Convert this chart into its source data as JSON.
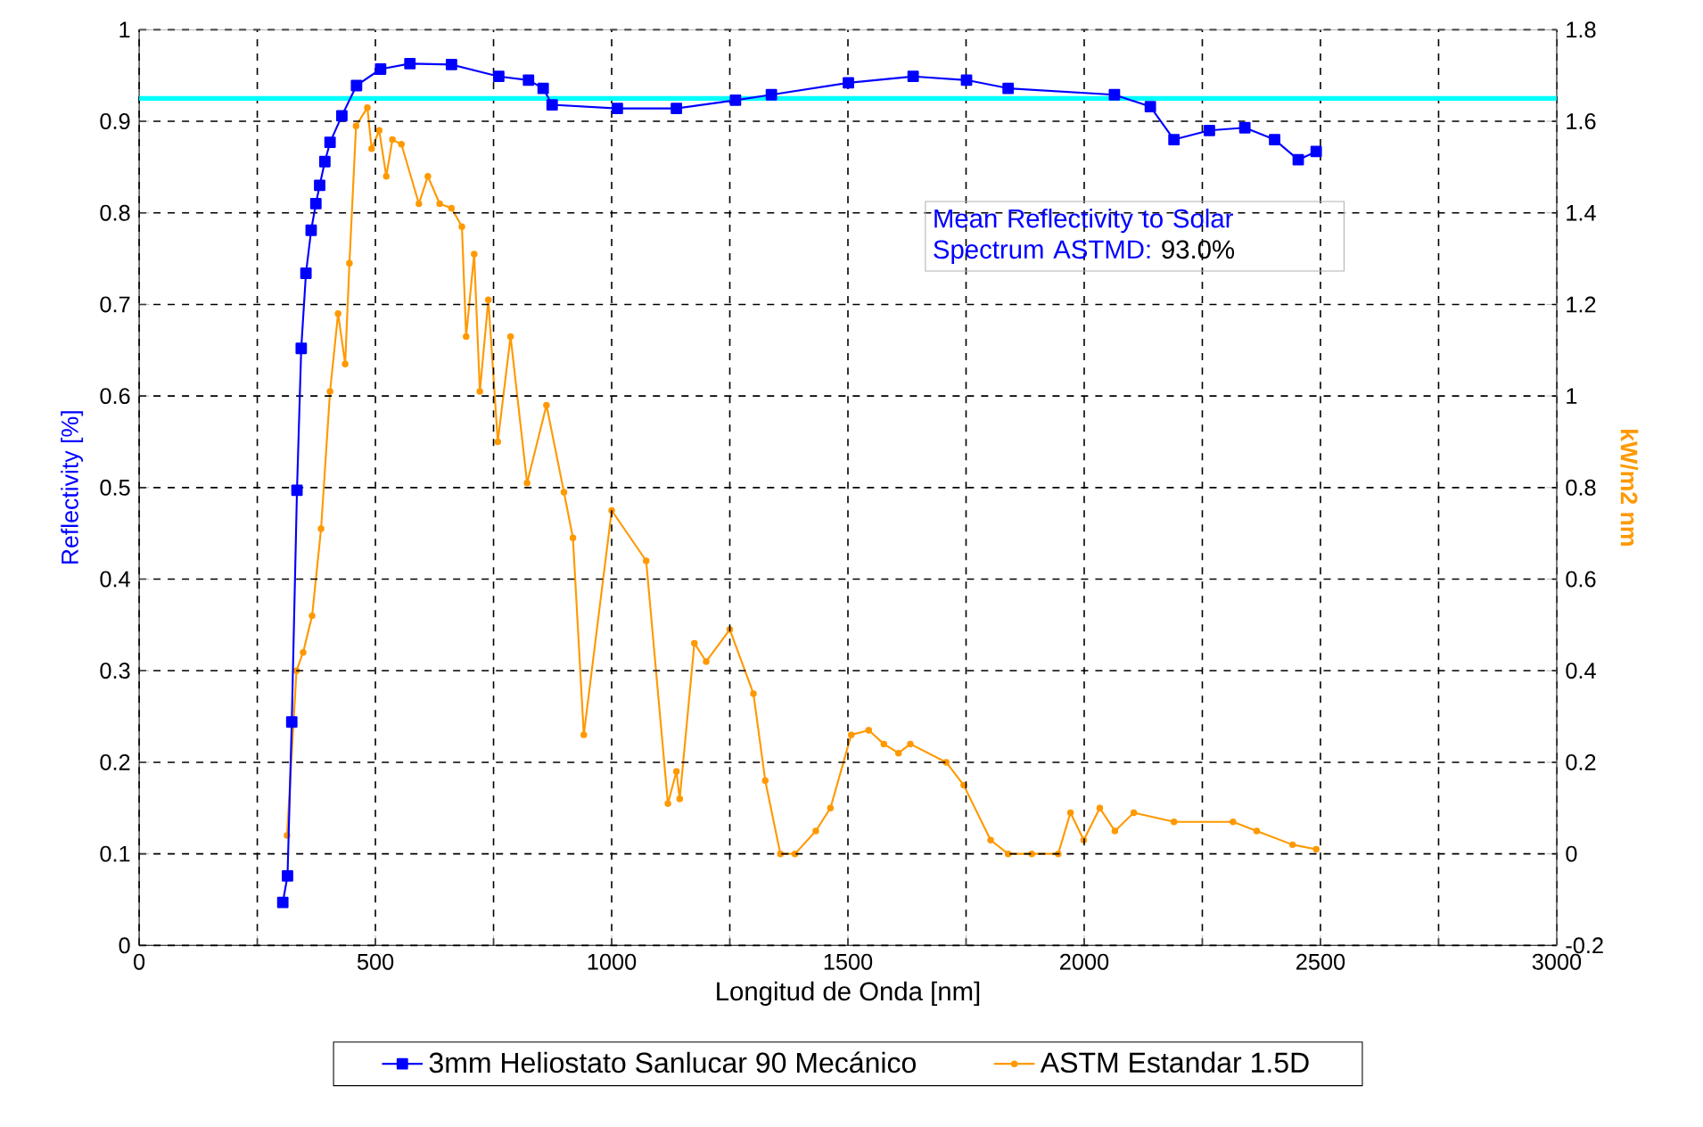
{
  "chart_data": {
    "type": "line",
    "xlabel": "Longitud de Onda [nm]",
    "ylabel": "Reflectivity [%]",
    "y2label": "kW/m2 nm",
    "xlim": [
      0,
      3000
    ],
    "xticks": [
      0,
      {
        "value": 250,
        "label": null
      },
      500,
      {
        "value": 750,
        "label": null
      },
      1000,
      {
        "value": 1250,
        "label": null
      },
      1500,
      {
        "value": 1750,
        "label": null
      },
      2000,
      {
        "value": 2250,
        "label": null
      },
      2500,
      {
        "value": 2750,
        "label": null
      },
      3000
    ],
    "ylim": [
      0,
      1
    ],
    "yticks": [
      0,
      0.1,
      0.2,
      0.3,
      0.4,
      0.5,
      0.6,
      0.7,
      0.8,
      0.9,
      1
    ],
    "y2lim": [
      -0.2,
      1.8
    ],
    "y2ticks": [
      -0.2,
      0,
      0.2,
      0.4,
      0.6,
      0.8,
      1,
      1.2,
      1.4,
      1.6,
      1.8
    ],
    "grid": true,
    "legend": "bottom",
    "series": [
      {
        "name": "3mm Heliostato Sanlucar 90 Mecánico",
        "color": "#0000ff",
        "marker": "square",
        "x": [
          304,
          314,
          323,
          334,
          343,
          353,
          364,
          374,
          382,
          393,
          404,
          429,
          460,
          511,
          573,
          661,
          761,
          824,
          855,
          874,
          1012,
          1137,
          1262,
          1338,
          1501,
          1638,
          1751,
          1839,
          2064,
          2140,
          2190,
          2265,
          2340,
          2403,
          2453,
          2491
        ],
        "values": [
          0.047,
          0.076,
          0.244,
          0.497,
          0.652,
          0.734,
          0.781,
          0.81,
          0.83,
          0.856,
          0.877,
          0.906,
          0.939,
          0.957,
          0.963,
          0.962,
          0.949,
          0.945,
          0.936,
          0.918,
          0.914,
          0.914,
          0.923,
          0.929,
          0.942,
          0.949,
          0.945,
          0.936,
          0.929,
          0.916,
          0.88,
          0.89,
          0.893,
          0.88,
          0.858,
          0.867
        ]
      },
      {
        "name": "ASTM Estandar 1.5D",
        "color": "#ff9900",
        "marker": "circle",
        "axis": "y2",
        "x": [
          313,
          333,
          347,
          366,
          385,
          404,
          421,
          436,
          445,
          459,
          483,
          492,
          508,
          523,
          536,
          555,
          592,
          611,
          636,
          661,
          683,
          692,
          709,
          721,
          739,
          759,
          786,
          821,
          862,
          899,
          918,
          941,
          1000,
          1073,
          1119,
          1137,
          1144,
          1175,
          1200,
          1250,
          1300,
          1325,
          1357,
          1388,
          1432,
          1463,
          1507,
          1544,
          1576,
          1607,
          1632,
          1708,
          1745,
          1802,
          1839,
          1889,
          1945,
          1971,
          1999,
          2033,
          2065,
          2105,
          2190,
          2315,
          2365,
          2441,
          2491
        ],
        "values": [
          0.04,
          0.4,
          0.44,
          0.52,
          0.71,
          1.01,
          1.18,
          1.07,
          1.29,
          1.59,
          1.63,
          1.54,
          1.58,
          1.48,
          1.56,
          1.55,
          1.42,
          1.48,
          1.42,
          1.41,
          1.37,
          1.13,
          1.31,
          1.01,
          1.21,
          0.9,
          1.13,
          0.81,
          0.98,
          0.79,
          0.69,
          0.26,
          0.75,
          0.64,
          0.11,
          0.18,
          0.12,
          0.46,
          0.42,
          0.49,
          0.35,
          0.16,
          0.0,
          0.0,
          0.05,
          0.1,
          0.26,
          0.27,
          0.24,
          0.22,
          0.24,
          0.2,
          0.15,
          0.03,
          0.0,
          0.0,
          0.0,
          0.09,
          0.03,
          0.1,
          0.05,
          0.09,
          0.07,
          0.07,
          0.05,
          0.02,
          0.01
        ]
      }
    ],
    "ref_lines": [
      {
        "axis": "y",
        "value": 0.925,
        "color": "#00ffff"
      }
    ],
    "annotations": [
      "Mean Reflectivity to Solar Spectrum ASTMD:",
      "93.0%"
    ]
  }
}
